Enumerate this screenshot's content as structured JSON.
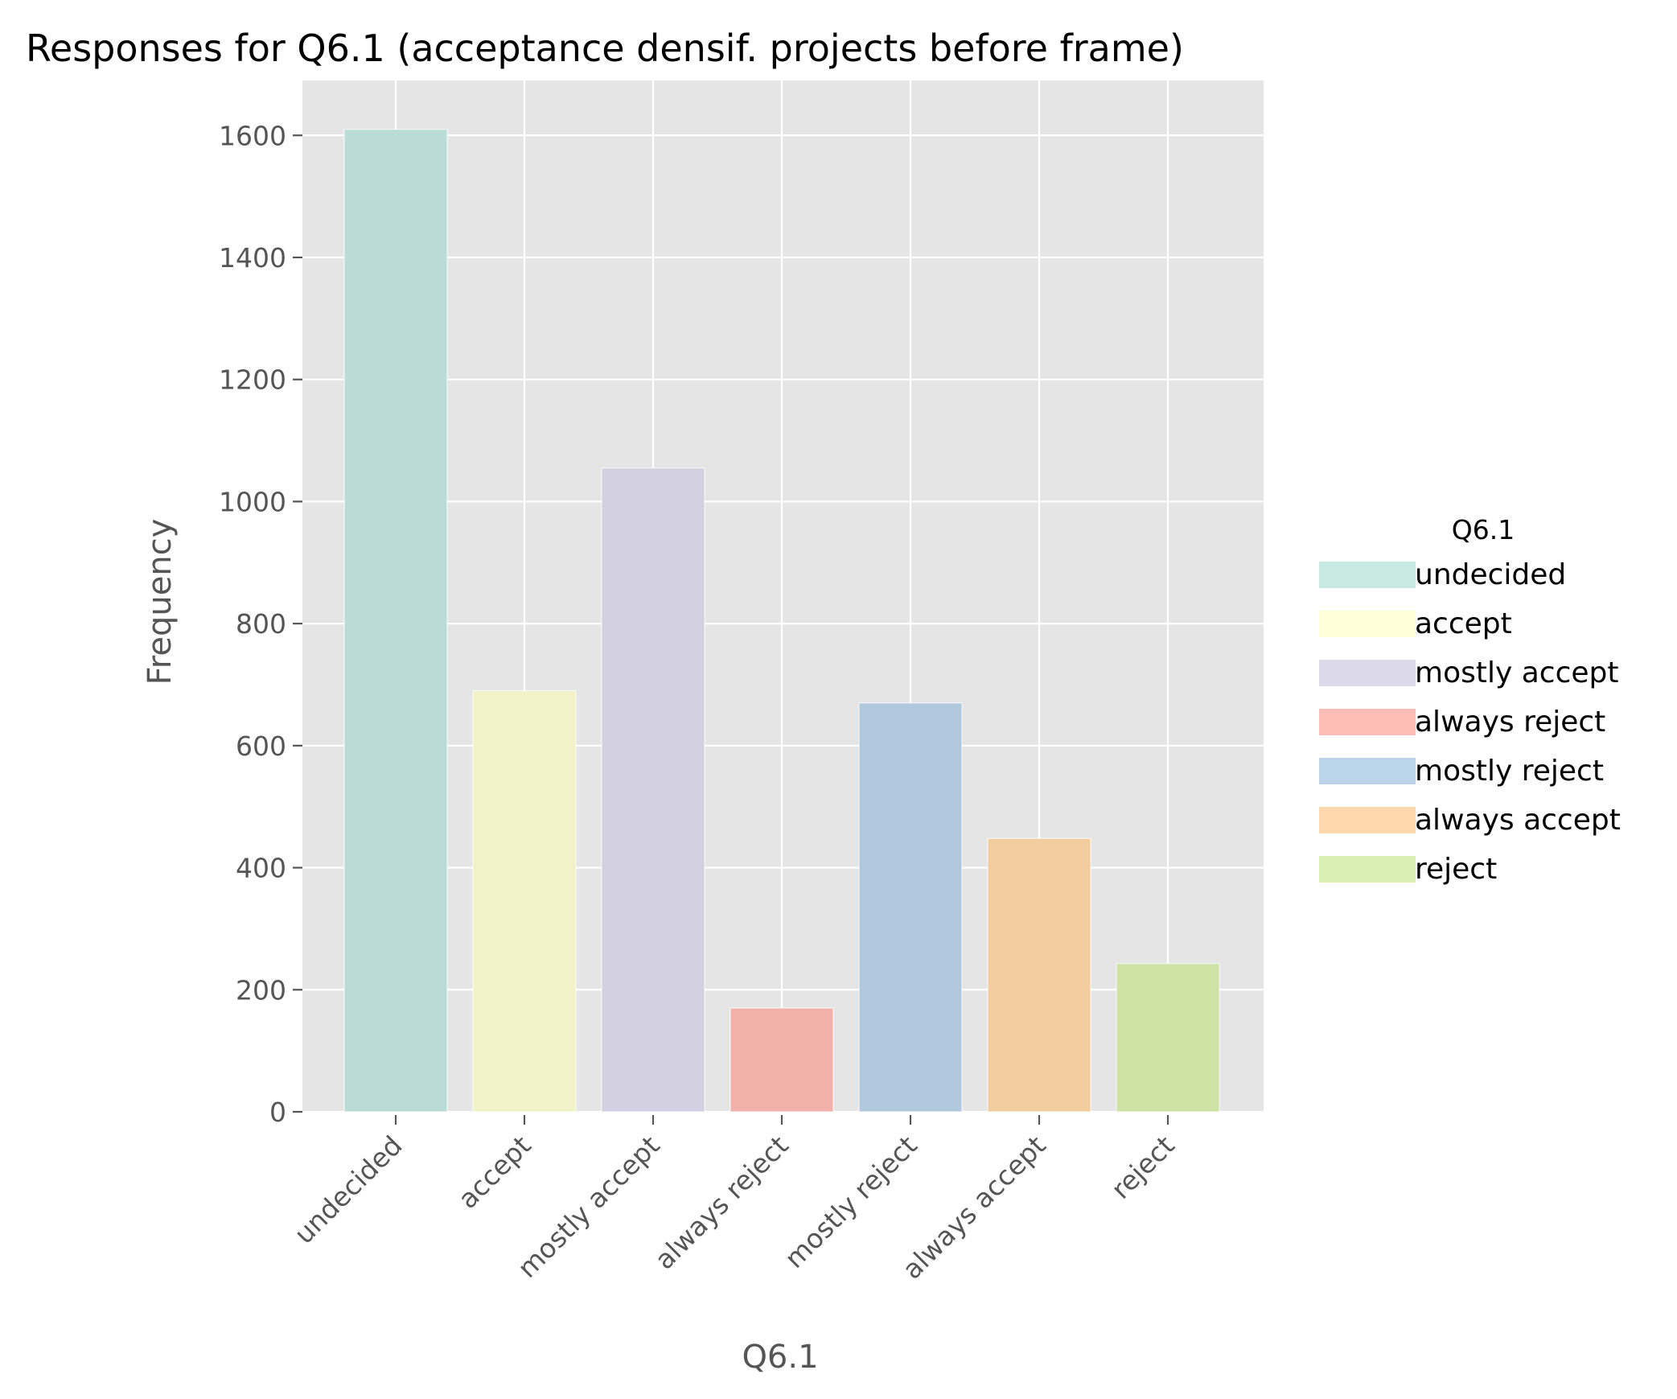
{
  "chart_data": {
    "type": "bar",
    "title": "Responses for Q6.1 (acceptance densif. projects before frame)",
    "xlabel": "Q6.1",
    "ylabel": "Frequency",
    "categories": [
      "undecided",
      "accept",
      "mostly accept",
      "always reject",
      "mostly reject",
      "always accept",
      "reject"
    ],
    "values": [
      1610,
      690,
      1055,
      170,
      670,
      448,
      243
    ],
    "colors": [
      "#b9ddd6",
      "#f2f2c8",
      "#d2cfe1",
      "#f1b1aa",
      "#b1c8dd",
      "#f1cc9f",
      "#cde2a4"
    ],
    "legend_colors": [
      "#c6e9e2",
      "#ffffd9",
      "#dcd9eb",
      "#fbbdb5",
      "#bcd4e9",
      "#fdd8ad",
      "#d9eeb2"
    ],
    "ylim": [
      0,
      1690
    ],
    "yticks": [
      0,
      200,
      400,
      600,
      800,
      1000,
      1200,
      1400,
      1600
    ],
    "grid": true,
    "background": "#e5e5e5",
    "legend": {
      "title": "Q6.1",
      "placement": "right"
    }
  }
}
